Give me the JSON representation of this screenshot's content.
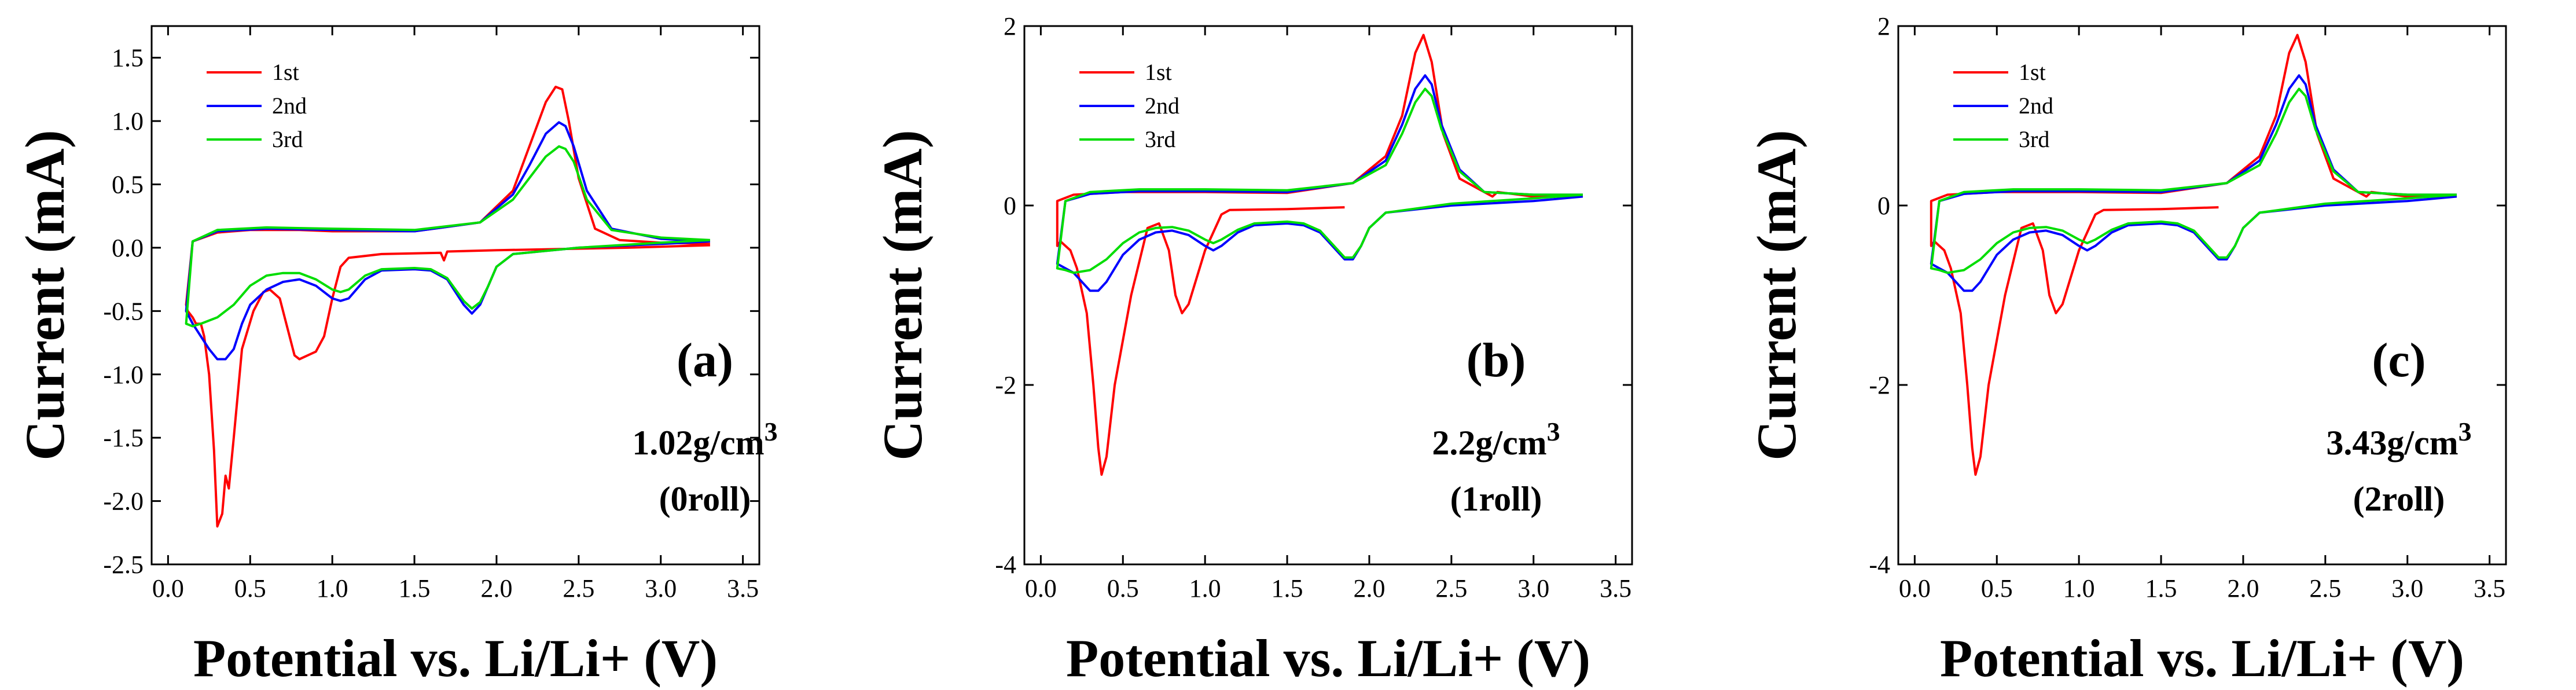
{
  "chart_data": [
    {
      "type": "line",
      "panel_label": "(a)",
      "density_text": "1.02g/cm",
      "density_sup": "3",
      "roll_text": "(0roll)",
      "xlabel": "Potential vs. Li/Li+ (V)",
      "ylabel": "Current (mA)",
      "xlim": [
        -0.1,
        3.6
      ],
      "ylim": [
        -2.5,
        1.75
      ],
      "xticks": [
        0.0,
        0.5,
        1.0,
        1.5,
        2.0,
        2.5,
        3.0,
        3.5
      ],
      "xtick_labels": [
        "0.0",
        "0.5",
        "1.0",
        "1.5",
        "2.0",
        "2.5",
        "3.0",
        "3.5"
      ],
      "yticks": [
        -2.5,
        -2.0,
        -1.5,
        -1.0,
        -0.5,
        0.0,
        0.5,
        1.0,
        1.5
      ],
      "ytick_labels": [
        "-2.5",
        "-2.0",
        "-1.5",
        "-1.0",
        "-0.5",
        "0.0",
        "0.5",
        "1.0",
        "1.5"
      ],
      "legend_position": "top-left",
      "series": [
        {
          "name": "1st",
          "color": "#ff0000",
          "x": [
            3.3,
            2.8,
            2.0,
            1.7,
            1.68,
            1.66,
            1.3,
            1.1,
            1.05,
            1.0,
            0.95,
            0.9,
            0.85,
            0.8,
            0.77,
            0.72,
            0.68,
            0.62,
            0.58,
            0.52,
            0.45,
            0.4,
            0.37,
            0.35,
            0.33,
            0.3,
            0.28,
            0.25,
            0.22,
            0.2,
            0.17,
            0.15,
            0.12,
            0.11,
            0.15,
            0.3,
            0.5,
            0.8,
            1.0,
            1.5,
            1.9,
            2.1,
            2.2,
            2.3,
            2.36,
            2.4,
            2.44,
            2.5,
            2.6,
            2.75,
            3.0,
            3.3
          ],
          "y": [
            0.02,
            0.0,
            -0.02,
            -0.03,
            -0.1,
            -0.04,
            -0.05,
            -0.08,
            -0.15,
            -0.4,
            -0.7,
            -0.82,
            -0.85,
            -0.88,
            -0.85,
            -0.6,
            -0.4,
            -0.33,
            -0.35,
            -0.5,
            -0.8,
            -1.5,
            -1.9,
            -1.8,
            -2.1,
            -2.2,
            -1.6,
            -1.0,
            -0.7,
            -0.6,
            -0.6,
            -0.55,
            -0.5,
            -0.45,
            0.05,
            0.12,
            0.14,
            0.14,
            0.13,
            0.13,
            0.2,
            0.45,
            0.8,
            1.15,
            1.27,
            1.25,
            1.0,
            0.55,
            0.15,
            0.06,
            0.04,
            0.03
          ]
        },
        {
          "name": "2nd",
          "color": "#0000ff",
          "x": [
            3.3,
            3.0,
            2.5,
            2.1,
            2.0,
            1.95,
            1.9,
            1.85,
            1.8,
            1.7,
            1.6,
            1.5,
            1.3,
            1.2,
            1.1,
            1.05,
            1.0,
            0.9,
            0.8,
            0.7,
            0.6,
            0.5,
            0.45,
            0.4,
            0.35,
            0.3,
            0.25,
            0.2,
            0.15,
            0.11,
            0.15,
            0.3,
            0.6,
            1.0,
            1.5,
            1.9,
            2.1,
            2.2,
            2.3,
            2.38,
            2.42,
            2.47,
            2.55,
            2.7,
            3.0,
            3.3
          ],
          "y": [
            0.05,
            0.03,
            0.0,
            -0.05,
            -0.15,
            -0.3,
            -0.45,
            -0.52,
            -0.45,
            -0.25,
            -0.18,
            -0.17,
            -0.18,
            -0.25,
            -0.4,
            -0.42,
            -0.4,
            -0.3,
            -0.25,
            -0.27,
            -0.33,
            -0.45,
            -0.6,
            -0.8,
            -0.88,
            -0.88,
            -0.8,
            -0.7,
            -0.6,
            -0.5,
            0.05,
            0.13,
            0.15,
            0.14,
            0.13,
            0.2,
            0.42,
            0.65,
            0.9,
            0.99,
            0.96,
            0.8,
            0.45,
            0.15,
            0.07,
            0.05
          ]
        },
        {
          "name": "3rd",
          "color": "#00dd00",
          "x": [
            3.3,
            3.0,
            2.5,
            2.1,
            2.0,
            1.95,
            1.9,
            1.85,
            1.8,
            1.7,
            1.6,
            1.5,
            1.3,
            1.2,
            1.1,
            1.05,
            1.0,
            0.9,
            0.8,
            0.7,
            0.6,
            0.5,
            0.4,
            0.3,
            0.2,
            0.15,
            0.11,
            0.15,
            0.3,
            0.6,
            1.0,
            1.5,
            1.9,
            2.1,
            2.2,
            2.3,
            2.38,
            2.42,
            2.47,
            2.55,
            2.7,
            3.0,
            3.3
          ],
          "y": [
            0.06,
            0.04,
            0.0,
            -0.05,
            -0.15,
            -0.3,
            -0.43,
            -0.48,
            -0.42,
            -0.24,
            -0.17,
            -0.16,
            -0.17,
            -0.22,
            -0.33,
            -0.35,
            -0.33,
            -0.25,
            -0.2,
            -0.2,
            -0.22,
            -0.3,
            -0.45,
            -0.55,
            -0.6,
            -0.62,
            -0.6,
            0.05,
            0.14,
            0.16,
            0.15,
            0.14,
            0.2,
            0.38,
            0.55,
            0.72,
            0.8,
            0.78,
            0.68,
            0.38,
            0.14,
            0.08,
            0.06
          ]
        }
      ]
    },
    {
      "type": "line",
      "panel_label": "(b)",
      "density_text": "2.2g/cm",
      "density_sup": "3",
      "roll_text": "(1roll)",
      "xlabel": "Potential vs. Li/Li+ (V)",
      "ylabel": "Current (mA)",
      "xlim": [
        -0.1,
        3.6
      ],
      "ylim": [
        -4,
        2
      ],
      "xticks": [
        0.0,
        0.5,
        1.0,
        1.5,
        2.0,
        2.5,
        3.0,
        3.5
      ],
      "xtick_labels": [
        "0.0",
        "0.5",
        "1.0",
        "1.5",
        "2.0",
        "2.5",
        "3.0",
        "3.5"
      ],
      "yticks": [
        -4,
        -2,
        0,
        2
      ],
      "ytick_labels": [
        "-4",
        "-2",
        "0",
        "2"
      ],
      "legend_position": "top-left",
      "series": [
        {
          "name": "1st",
          "color": "#ff0000",
          "x": [
            1.85,
            1.5,
            1.15,
            1.1,
            1.05,
            1.0,
            0.95,
            0.9,
            0.86,
            0.82,
            0.78,
            0.72,
            0.65,
            0.55,
            0.45,
            0.4,
            0.37,
            0.35,
            0.32,
            0.28,
            0.22,
            0.18,
            0.15,
            0.12,
            0.1,
            0.1,
            0.2,
            0.5,
            1.0,
            1.5,
            1.9,
            2.1,
            2.2,
            2.28,
            2.33,
            2.38,
            2.45,
            2.55,
            2.75,
            2.78,
            3.0,
            3.3
          ],
          "y": [
            -0.02,
            -0.04,
            -0.05,
            -0.1,
            -0.3,
            -0.5,
            -0.8,
            -1.1,
            -1.2,
            -1.0,
            -0.5,
            -0.2,
            -0.25,
            -1.0,
            -2.0,
            -2.8,
            -3.0,
            -2.7,
            -2.0,
            -1.2,
            -0.7,
            -0.5,
            -0.45,
            -0.4,
            -0.45,
            0.05,
            0.12,
            0.15,
            0.15,
            0.14,
            0.25,
            0.55,
            1.0,
            1.7,
            1.9,
            1.6,
            0.8,
            0.3,
            0.1,
            0.15,
            0.1,
            0.1
          ]
        },
        {
          "name": "2nd",
          "color": "#0000ff",
          "x": [
            3.3,
            3.0,
            2.5,
            2.1,
            2.0,
            1.95,
            1.9,
            1.85,
            1.8,
            1.7,
            1.6,
            1.5,
            1.3,
            1.2,
            1.1,
            1.05,
            1.0,
            0.9,
            0.8,
            0.7,
            0.6,
            0.5,
            0.45,
            0.4,
            0.35,
            0.3,
            0.25,
            0.2,
            0.15,
            0.1,
            0.15,
            0.3,
            0.6,
            1.0,
            1.5,
            1.9,
            2.1,
            2.2,
            2.28,
            2.34,
            2.38,
            2.44,
            2.55,
            2.7,
            3.0,
            3.3
          ],
          "y": [
            0.1,
            0.05,
            0.0,
            -0.08,
            -0.25,
            -0.45,
            -0.6,
            -0.6,
            -0.5,
            -0.3,
            -0.22,
            -0.2,
            -0.22,
            -0.3,
            -0.45,
            -0.5,
            -0.45,
            -0.33,
            -0.28,
            -0.3,
            -0.38,
            -0.55,
            -0.7,
            -0.85,
            -0.95,
            -0.95,
            -0.85,
            -0.75,
            -0.7,
            -0.65,
            0.05,
            0.13,
            0.16,
            0.16,
            0.15,
            0.25,
            0.5,
            0.9,
            1.3,
            1.45,
            1.35,
            0.9,
            0.4,
            0.15,
            0.12,
            0.12
          ]
        },
        {
          "name": "3rd",
          "color": "#00dd00",
          "x": [
            3.3,
            3.0,
            2.5,
            2.1,
            2.0,
            1.95,
            1.9,
            1.85,
            1.8,
            1.7,
            1.6,
            1.5,
            1.3,
            1.2,
            1.1,
            1.05,
            1.0,
            0.9,
            0.8,
            0.7,
            0.6,
            0.5,
            0.4,
            0.3,
            0.2,
            0.15,
            0.1,
            0.15,
            0.3,
            0.6,
            1.0,
            1.5,
            1.9,
            2.1,
            2.2,
            2.28,
            2.34,
            2.38,
            2.44,
            2.55,
            2.7,
            3.0,
            3.3
          ],
          "y": [
            0.12,
            0.08,
            0.02,
            -0.08,
            -0.25,
            -0.45,
            -0.58,
            -0.58,
            -0.48,
            -0.28,
            -0.2,
            -0.18,
            -0.2,
            -0.27,
            -0.38,
            -0.42,
            -0.38,
            -0.28,
            -0.24,
            -0.25,
            -0.3,
            -0.42,
            -0.6,
            -0.72,
            -0.75,
            -0.72,
            -0.7,
            0.05,
            0.15,
            0.18,
            0.18,
            0.17,
            0.25,
            0.45,
            0.8,
            1.15,
            1.3,
            1.22,
            0.85,
            0.38,
            0.15,
            0.12,
            0.12
          ]
        }
      ]
    },
    {
      "type": "line",
      "panel_label": "(c)",
      "density_text": "3.43g/cm",
      "density_sup": "3",
      "roll_text": "(2roll)",
      "xlabel": "Potential vs. Li/Li+ (V)",
      "ylabel": "Current (mA)",
      "xlim": [
        -0.1,
        3.6
      ],
      "ylim": [
        -4,
        2
      ],
      "xticks": [
        0.0,
        0.5,
        1.0,
        1.5,
        2.0,
        2.5,
        3.0,
        3.5
      ],
      "xtick_labels": [
        "0.0",
        "0.5",
        "1.0",
        "1.5",
        "2.0",
        "2.5",
        "3.0",
        "3.5"
      ],
      "yticks": [
        -4,
        -2,
        0,
        2
      ],
      "ytick_labels": [
        "-4",
        "-2",
        "0",
        "2"
      ],
      "legend_position": "top-left",
      "series": [
        {
          "name": "1st",
          "color": "#ff0000",
          "x": [
            1.85,
            1.5,
            1.15,
            1.1,
            1.05,
            1.0,
            0.95,
            0.9,
            0.86,
            0.82,
            0.78,
            0.72,
            0.65,
            0.55,
            0.45,
            0.4,
            0.37,
            0.35,
            0.32,
            0.28,
            0.22,
            0.18,
            0.15,
            0.12,
            0.1,
            0.1,
            0.2,
            0.5,
            1.0,
            1.5,
            1.9,
            2.1,
            2.2,
            2.28,
            2.33,
            2.38,
            2.45,
            2.55,
            2.75,
            2.78,
            3.0,
            3.3
          ],
          "y": [
            -0.02,
            -0.04,
            -0.05,
            -0.1,
            -0.3,
            -0.5,
            -0.8,
            -1.1,
            -1.2,
            -1.0,
            -0.5,
            -0.2,
            -0.25,
            -1.0,
            -2.0,
            -2.8,
            -3.0,
            -2.7,
            -2.0,
            -1.2,
            -0.7,
            -0.5,
            -0.45,
            -0.4,
            -0.45,
            0.05,
            0.12,
            0.15,
            0.15,
            0.14,
            0.25,
            0.55,
            1.0,
            1.7,
            1.9,
            1.6,
            0.8,
            0.3,
            0.1,
            0.15,
            0.1,
            0.1
          ]
        },
        {
          "name": "2nd",
          "color": "#0000ff",
          "x": [
            3.3,
            3.0,
            2.5,
            2.1,
            2.0,
            1.95,
            1.9,
            1.85,
            1.8,
            1.7,
            1.6,
            1.5,
            1.3,
            1.2,
            1.1,
            1.05,
            1.0,
            0.9,
            0.8,
            0.7,
            0.6,
            0.5,
            0.45,
            0.4,
            0.35,
            0.3,
            0.25,
            0.2,
            0.15,
            0.1,
            0.15,
            0.3,
            0.6,
            1.0,
            1.5,
            1.9,
            2.1,
            2.2,
            2.28,
            2.34,
            2.38,
            2.44,
            2.55,
            2.7,
            3.0,
            3.3
          ],
          "y": [
            0.1,
            0.05,
            0.0,
            -0.08,
            -0.25,
            -0.45,
            -0.6,
            -0.6,
            -0.5,
            -0.3,
            -0.22,
            -0.2,
            -0.22,
            -0.3,
            -0.45,
            -0.5,
            -0.45,
            -0.33,
            -0.28,
            -0.3,
            -0.38,
            -0.55,
            -0.7,
            -0.85,
            -0.95,
            -0.95,
            -0.85,
            -0.75,
            -0.7,
            -0.65,
            0.05,
            0.13,
            0.16,
            0.16,
            0.15,
            0.25,
            0.5,
            0.9,
            1.3,
            1.45,
            1.35,
            0.9,
            0.4,
            0.15,
            0.12,
            0.12
          ]
        },
        {
          "name": "3rd",
          "color": "#00dd00",
          "x": [
            3.3,
            3.0,
            2.5,
            2.1,
            2.0,
            1.95,
            1.9,
            1.85,
            1.8,
            1.7,
            1.6,
            1.5,
            1.3,
            1.2,
            1.1,
            1.05,
            1.0,
            0.9,
            0.8,
            0.7,
            0.6,
            0.5,
            0.4,
            0.3,
            0.2,
            0.15,
            0.1,
            0.15,
            0.3,
            0.6,
            1.0,
            1.5,
            1.9,
            2.1,
            2.2,
            2.28,
            2.34,
            2.38,
            2.44,
            2.55,
            2.7,
            3.0,
            3.3
          ],
          "y": [
            0.12,
            0.08,
            0.02,
            -0.08,
            -0.25,
            -0.45,
            -0.58,
            -0.58,
            -0.48,
            -0.28,
            -0.2,
            -0.18,
            -0.2,
            -0.27,
            -0.38,
            -0.42,
            -0.38,
            -0.28,
            -0.24,
            -0.25,
            -0.3,
            -0.42,
            -0.6,
            -0.72,
            -0.75,
            -0.72,
            -0.7,
            0.05,
            0.15,
            0.18,
            0.18,
            0.17,
            0.25,
            0.45,
            0.8,
            1.15,
            1.3,
            1.22,
            0.85,
            0.38,
            0.15,
            0.12,
            0.12
          ]
        }
      ]
    }
  ]
}
